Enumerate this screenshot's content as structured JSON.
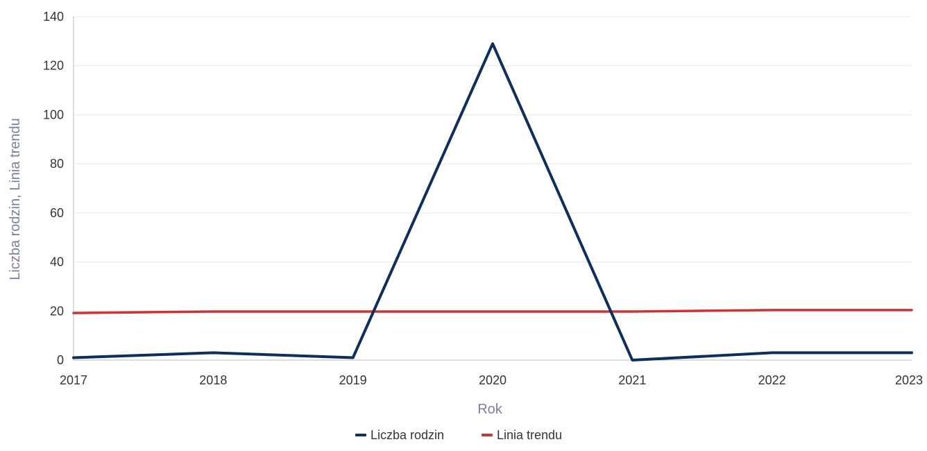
{
  "chart_data": {
    "type": "line",
    "x": [
      2017,
      2018,
      2019,
      2020,
      2021,
      2022,
      2023
    ],
    "xlabel": "Rok",
    "ylabel": "Liczba rodzin, Linia trendu",
    "ylim": [
      0,
      140
    ],
    "yticks": [
      0,
      20,
      40,
      60,
      80,
      100,
      120,
      140
    ],
    "xticks": [
      "2017",
      "2018",
      "2019",
      "2020",
      "2021",
      "2022",
      "2023"
    ],
    "grid": true,
    "legend_position": "bottom",
    "series": [
      {
        "name": "Liczba rodzin",
        "color": "#0d2f5c",
        "values": [
          1,
          3,
          1,
          129,
          0,
          3,
          3
        ]
      },
      {
        "name": "Linia trendu",
        "color": "#cc3333",
        "values": [
          19.2,
          19.8,
          19.8,
          19.8,
          19.8,
          20.4,
          20.4
        ]
      }
    ]
  }
}
